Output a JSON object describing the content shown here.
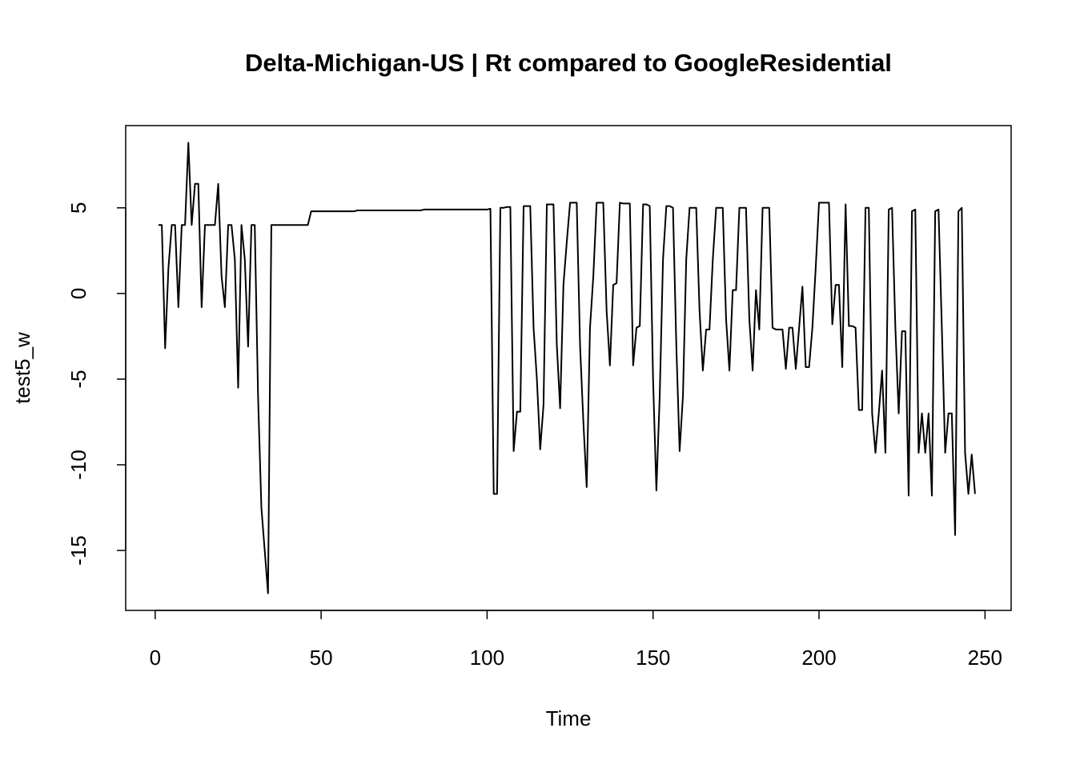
{
  "chart_data": {
    "type": "line",
    "title": "Delta-Michigan-US | Rt compared to GoogleResidential",
    "x_label": "Time",
    "y_label": "test5_w",
    "color": "#000000",
    "x": [
      1,
      2,
      3,
      4,
      5,
      6,
      7,
      8,
      9,
      10,
      11,
      12,
      13,
      14,
      15,
      16,
      17,
      18,
      19,
      20,
      21,
      22,
      23,
      24,
      25,
      26,
      27,
      28,
      29,
      30,
      31,
      32,
      33,
      34,
      35,
      36,
      37,
      38,
      39,
      40,
      41,
      42,
      43,
      44,
      45,
      46,
      47,
      48,
      49,
      50,
      51,
      52,
      53,
      54,
      55,
      56,
      57,
      58,
      59,
      60,
      61,
      62,
      63,
      64,
      65,
      66,
      67,
      68,
      69,
      70,
      71,
      72,
      73,
      74,
      75,
      76,
      77,
      78,
      79,
      80,
      81,
      82,
      83,
      84,
      85,
      86,
      87,
      88,
      89,
      90,
      91,
      92,
      93,
      94,
      95,
      96,
      97,
      98,
      99,
      100,
      101,
      102,
      103,
      104,
      105,
      106,
      107,
      108,
      109,
      110,
      111,
      112,
      113,
      114,
      115,
      116,
      117,
      118,
      119,
      120,
      121,
      122,
      123,
      124,
      125,
      126,
      127,
      128,
      129,
      130,
      131,
      132,
      133,
      134,
      135,
      136,
      137,
      138,
      139,
      140,
      141,
      142,
      143,
      144,
      145,
      146,
      147,
      148,
      149,
      150,
      151,
      152,
      153,
      154,
      155,
      156,
      157,
      158,
      159,
      160,
      161,
      162,
      163,
      164,
      165,
      166,
      167,
      168,
      169,
      170,
      171,
      172,
      173,
      174,
      175,
      176,
      177,
      178,
      179,
      180,
      181,
      182,
      183,
      184,
      185,
      186,
      187,
      188,
      189,
      190,
      191,
      192,
      193,
      194,
      195,
      196,
      197,
      198,
      199,
      200,
      201,
      202,
      203,
      204,
      205,
      206,
      207,
      208,
      209,
      210,
      211,
      212,
      213,
      214,
      215,
      216,
      217,
      218,
      219,
      220,
      221,
      222,
      223,
      224,
      225,
      226,
      227,
      228,
      229,
      230,
      231,
      232,
      233,
      234,
      235,
      236,
      237,
      238,
      239,
      240,
      241,
      242,
      243,
      244,
      245,
      246,
      247
    ],
    "values": [
      4,
      4,
      -3.2,
      1.5,
      4,
      4,
      -0.8,
      4,
      4,
      8.8,
      4,
      6.4,
      6.4,
      -0.8,
      4,
      4,
      4,
      4,
      6.4,
      1,
      -0.8,
      4,
      4,
      2,
      -5.5,
      4,
      2,
      -3.1,
      4,
      4,
      -6,
      -12.5,
      -15,
      -17.5,
      4,
      4,
      4,
      4,
      4,
      4,
      4,
      4,
      4,
      4,
      4,
      4,
      4.8,
      4.8,
      4.8,
      4.8,
      4.8,
      4.8,
      4.8,
      4.8,
      4.8,
      4.8,
      4.8,
      4.8,
      4.8,
      4.8,
      4.85,
      4.85,
      4.85,
      4.85,
      4.85,
      4.85,
      4.85,
      4.85,
      4.85,
      4.85,
      4.85,
      4.85,
      4.85,
      4.85,
      4.85,
      4.85,
      4.85,
      4.85,
      4.85,
      4.85,
      4.9,
      4.9,
      4.9,
      4.9,
      4.9,
      4.9,
      4.9,
      4.9,
      4.9,
      4.9,
      4.9,
      4.9,
      4.9,
      4.9,
      4.9,
      4.9,
      4.9,
      4.9,
      4.9,
      4.9,
      4.95,
      -11.7,
      -11.7,
      5,
      5,
      5.05,
      5.05,
      -9.2,
      -6.9,
      -6.9,
      5.1,
      5.1,
      5.1,
      -2,
      -5,
      -9.1,
      -6.5,
      5.2,
      5.2,
      5.2,
      -3,
      -6.7,
      0.5,
      3,
      5.3,
      5.3,
      5.3,
      -3,
      -7.5,
      -11.3,
      -2,
      1,
      5.3,
      5.3,
      5.3,
      -1,
      -4.2,
      0.5,
      0.6,
      5.3,
      5.25,
      5.25,
      5.25,
      -4.2,
      -2,
      -1.9,
      5.2,
      5.2,
      5.1,
      -5,
      -11.5,
      -6,
      2,
      5.1,
      5.1,
      5,
      -3,
      -9.2,
      -6,
      2,
      5,
      5,
      5,
      -1,
      -4.5,
      -2.1,
      -2.1,
      2,
      5,
      5,
      5,
      -1.5,
      -4.5,
      0.2,
      0.2,
      5,
      5,
      5,
      -1.5,
      -4.5,
      0.2,
      -2.1,
      5,
      5,
      5,
      -2,
      -2.1,
      -2.1,
      -2.1,
      -4.4,
      -2,
      -2,
      -4.4,
      -2,
      0.4,
      -4.3,
      -4.3,
      -2,
      1.5,
      5.3,
      5.3,
      5.3,
      5.3,
      -1.8,
      0.5,
      0.5,
      -4.3,
      5.2,
      -1.9,
      -1.9,
      -2,
      -6.8,
      -6.8,
      5,
      5,
      -7,
      -9.3,
      -7,
      -4.5,
      -9.3,
      4.9,
      5,
      -2,
      -7,
      -2.2,
      -2.2,
      -11.8,
      4.8,
      4.9,
      -9.3,
      -7,
      -9.3,
      -7,
      -11.8,
      4.8,
      4.9,
      -2,
      -9.3,
      -7,
      -7,
      -14.1,
      4.8,
      5,
      -9.3,
      -11.7,
      -9.4,
      -11.7
    ],
    "xlim": [
      -8.88,
      257.88
    ],
    "ylim": [
      -18.5,
      9.8
    ],
    "xticks": [
      0,
      50,
      100,
      150,
      200,
      250
    ],
    "yticks": [
      -15,
      -10,
      -5,
      0,
      5
    ]
  }
}
